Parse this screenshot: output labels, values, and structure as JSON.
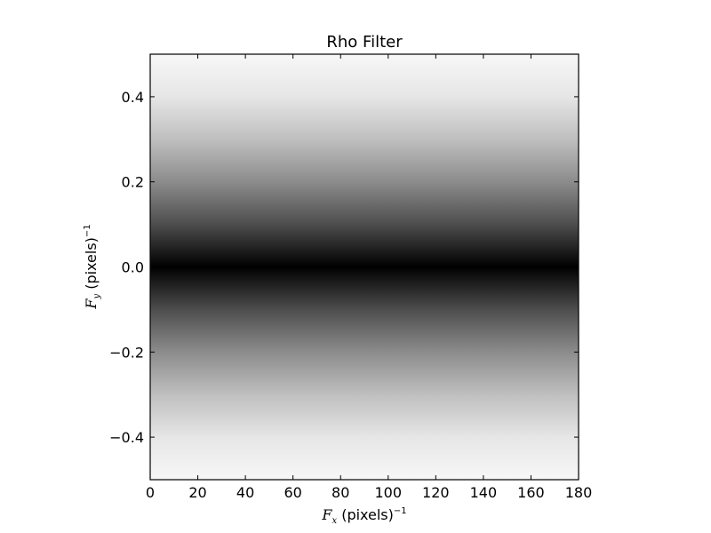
{
  "chart_data": {
    "type": "heatmap",
    "title": "Rho Filter",
    "xlabel": {
      "symbol": "F",
      "subscript": "x",
      "text": " (pixels)",
      "superscript": "−1"
    },
    "ylabel": {
      "symbol": "F",
      "subscript": "y",
      "text": " (pixels)",
      "superscript": "−1"
    },
    "xlim": [
      0,
      180
    ],
    "ylim": [
      -0.5,
      0.5
    ],
    "xticks": [
      0,
      20,
      40,
      60,
      80,
      100,
      120,
      140,
      160,
      180
    ],
    "xtick_labels": [
      "0",
      "20",
      "40",
      "60",
      "80",
      "100",
      "120",
      "140",
      "160",
      "180"
    ],
    "yticks": [
      0.4,
      0.2,
      0.0,
      -0.2,
      -0.4
    ],
    "ytick_labels": [
      "0.4",
      "0.2",
      "0.0",
      "−0.2",
      "−0.4"
    ],
    "colormap": "gray",
    "value_profile": {
      "description_axis": "y",
      "y": [
        -0.5,
        -0.4,
        -0.3,
        -0.2,
        -0.1,
        0.0,
        0.1,
        0.2,
        0.3,
        0.4,
        0.5
      ],
      "intensity": [
        0.97,
        0.9,
        0.75,
        0.55,
        0.3,
        0.0,
        0.3,
        0.55,
        0.75,
        0.9,
        0.97
      ]
    },
    "grid": false
  }
}
